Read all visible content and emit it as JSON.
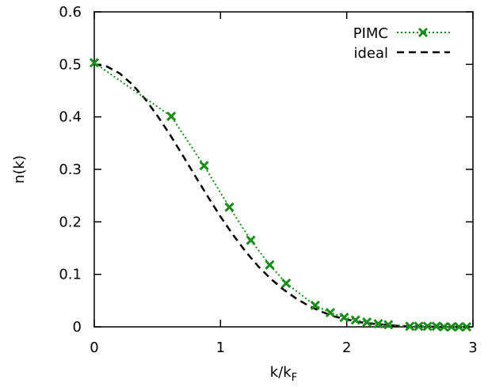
{
  "chart_data": {
    "type": "line",
    "xlabel": "k/k",
    "xlabel_subscript": "F",
    "ylabel": "n(k)",
    "xlim": [
      0,
      3
    ],
    "ylim": [
      0,
      0.6
    ],
    "x_ticks": [
      0,
      1,
      2,
      3
    ],
    "x_tick_labels": [
      "0",
      "1",
      "2",
      "3"
    ],
    "y_ticks": [
      0,
      0.1,
      0.2,
      0.3,
      0.4,
      0.5,
      0.6
    ],
    "y_tick_labels": [
      "0",
      "0.1",
      "0.2",
      "0.3",
      "0.4",
      "0.5",
      "0.6"
    ],
    "grid": false,
    "legend_position": "top-right",
    "series": [
      {
        "name": "PIMC",
        "style": "dotted line with x markers",
        "color": "#1a8a1a",
        "x": [
          0.0,
          0.61,
          0.87,
          1.07,
          1.24,
          1.39,
          1.52,
          1.75,
          1.87,
          1.98,
          2.07,
          2.16,
          2.25,
          2.33,
          2.5,
          2.57,
          2.64,
          2.71,
          2.77,
          2.83,
          2.89,
          2.95
        ],
        "y": [
          0.503,
          0.401,
          0.307,
          0.228,
          0.165,
          0.118,
          0.083,
          0.041,
          0.027,
          0.018,
          0.013,
          0.009,
          0.006,
          0.004,
          0.001,
          0.001,
          0.001,
          0.001,
          0.0,
          0.0,
          0.0,
          0.0
        ]
      },
      {
        "name": "ideal",
        "style": "dashed line",
        "color": "#000000",
        "x": [
          0.0,
          0.1,
          0.2,
          0.3,
          0.4,
          0.5,
          0.6,
          0.7,
          0.8,
          0.9,
          1.0,
          1.1,
          1.2,
          1.3,
          1.4,
          1.5,
          1.6,
          1.7,
          1.8,
          1.9,
          2.0,
          2.1,
          2.2,
          2.3,
          2.4,
          2.5,
          2.6,
          2.7,
          2.8,
          2.9,
          3.0
        ],
        "y": [
          0.5,
          0.496,
          0.483,
          0.462,
          0.435,
          0.402,
          0.366,
          0.327,
          0.287,
          0.248,
          0.21,
          0.175,
          0.143,
          0.115,
          0.091,
          0.071,
          0.054,
          0.04,
          0.029,
          0.02,
          0.014,
          0.009,
          0.006,
          0.004,
          0.002,
          0.001,
          0.001,
          0.0,
          0.0,
          0.0,
          0.0
        ]
      }
    ]
  }
}
